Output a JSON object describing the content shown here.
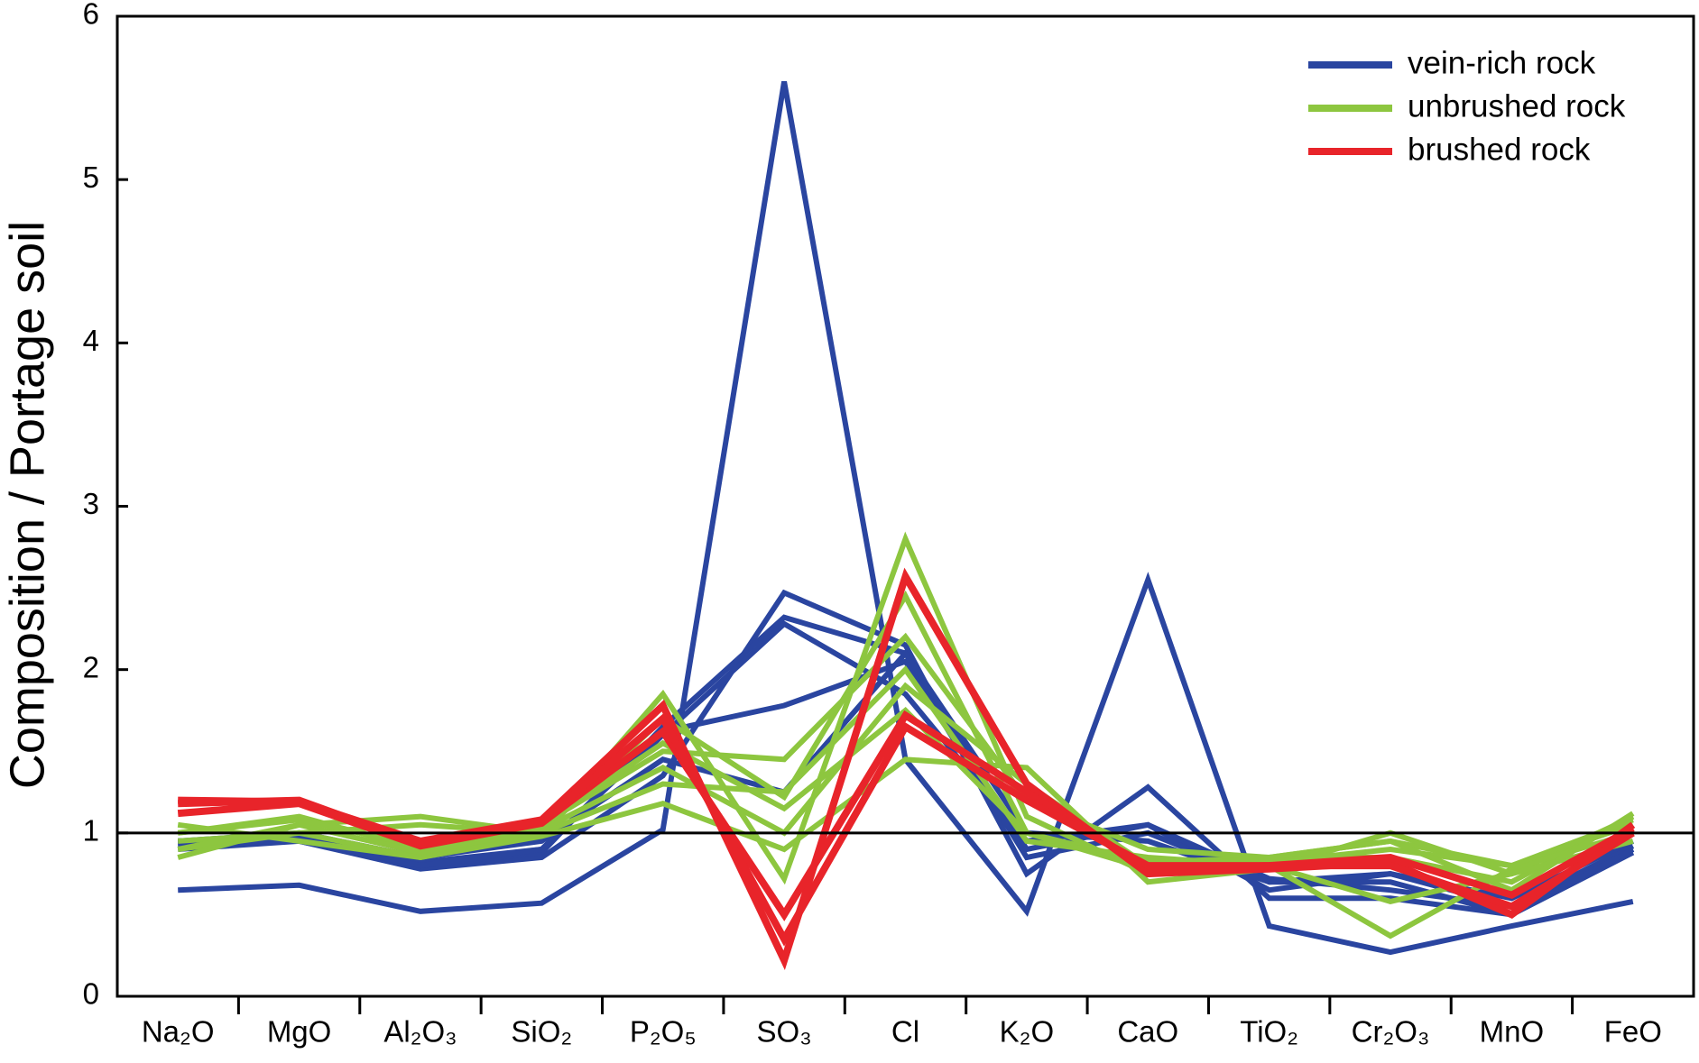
{
  "chart_data": {
    "type": "line",
    "ylabel": "Composition / Portage soil",
    "categories": [
      "Na₂O",
      "MgO",
      "Al₂O₃",
      "SiO₂",
      "P₂O₅",
      "SO₃",
      "Cl",
      "K₂O",
      "CaO",
      "TiO₂",
      "Cr₂O₃",
      "MnO",
      "FeO"
    ],
    "ylim": [
      0,
      6
    ],
    "yticks": [
      0,
      1,
      2,
      3,
      4,
      5,
      6
    ],
    "hline": 1,
    "legend": "upper right",
    "series": [
      {
        "name": "vein-rich rock",
        "color": "#2a45a0",
        "samples": [
          [
            0.65,
            0.68,
            0.52,
            0.57,
            1.02,
            5.6,
            1.45,
            0.52,
            2.55,
            0.43,
            0.27,
            0.43,
            0.58
          ],
          [
            0.95,
            0.95,
            0.78,
            0.85,
            1.35,
            2.47,
            2.15,
            0.75,
            1.28,
            0.6,
            0.6,
            0.5,
            0.88
          ],
          [
            0.9,
            0.95,
            0.8,
            0.88,
            1.65,
            2.32,
            2.1,
            0.9,
            1.05,
            0.65,
            0.75,
            0.55,
            0.9
          ],
          [
            0.95,
            0.98,
            0.82,
            0.9,
            1.6,
            2.28,
            1.85,
            0.95,
            1.05,
            0.72,
            0.65,
            0.55,
            0.92
          ],
          [
            0.92,
            0.96,
            0.8,
            0.9,
            1.62,
            1.78,
            2.05,
            0.85,
            1.0,
            0.7,
            0.7,
            0.5,
            0.9
          ],
          [
            0.95,
            1.0,
            0.85,
            0.95,
            1.45,
            1.25,
            2.1,
            1.0,
            0.95,
            0.7,
            0.75,
            0.6,
            0.95
          ]
        ]
      },
      {
        "name": "unbrushed rock",
        "color": "#8dc63f",
        "samples": [
          [
            0.85,
            1.05,
            1.1,
            1.0,
            1.85,
            0.72,
            2.8,
            1.1,
            0.75,
            0.8,
            0.58,
            0.75,
            1.1
          ],
          [
            0.9,
            1.0,
            1.05,
            1.0,
            1.7,
            1.22,
            2.45,
            1.0,
            0.82,
            0.85,
            0.95,
            0.8,
            1.05
          ],
          [
            1.0,
            1.1,
            0.9,
            1.05,
            1.5,
            1.45,
            2.2,
            1.2,
            0.9,
            0.85,
            0.85,
            0.7,
            1.1
          ],
          [
            0.95,
            1.0,
            0.85,
            1.0,
            1.3,
            1.25,
            2.0,
            0.95,
            0.85,
            0.8,
            0.37,
            0.78,
            1.0
          ],
          [
            1.05,
            0.95,
            0.85,
            0.98,
            1.18,
            0.9,
            1.45,
            1.4,
            0.7,
            0.78,
            1.0,
            0.75,
            0.95
          ],
          [
            0.9,
            1.05,
            0.88,
            1.02,
            1.4,
            1.0,
            1.9,
            1.3,
            0.8,
            0.82,
            0.9,
            0.8,
            1.08
          ],
          [
            1.0,
            1.08,
            0.92,
            1.05,
            1.55,
            1.15,
            1.75,
            1.0,
            0.78,
            0.85,
            0.95,
            0.65,
            1.12
          ]
        ]
      },
      {
        "name": "brushed rock",
        "color": "#e8242a",
        "samples": [
          [
            1.2,
            1.19,
            0.95,
            1.08,
            1.78,
            0.22,
            2.57,
            1.3,
            0.75,
            0.78,
            0.82,
            0.5,
            1.05
          ],
          [
            1.12,
            1.18,
            0.92,
            1.06,
            1.62,
            0.5,
            1.72,
            1.25,
            0.78,
            0.8,
            0.85,
            0.62,
            1.03
          ],
          [
            1.18,
            1.2,
            0.93,
            1.07,
            1.7,
            0.35,
            1.65,
            1.2,
            0.8,
            0.8,
            0.8,
            0.55,
            1.0
          ]
        ]
      }
    ]
  }
}
